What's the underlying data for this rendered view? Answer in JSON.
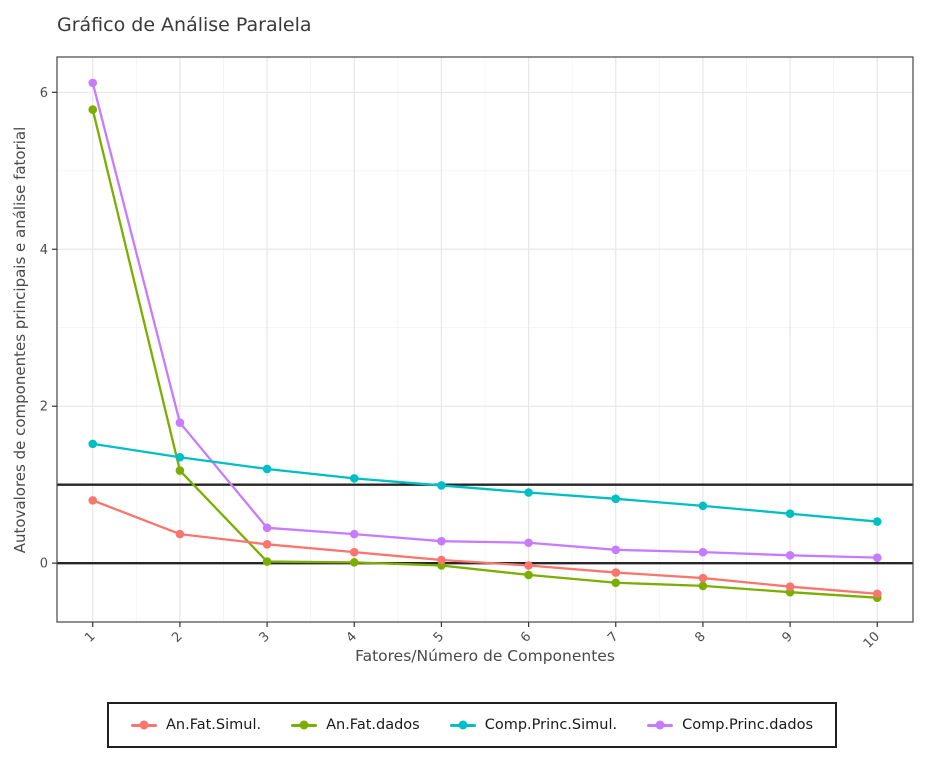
{
  "figure": {
    "title": "Gráfico de Análise Paralela"
  },
  "chart_data": {
    "type": "line",
    "title": "Gráfico de Análise Paralela",
    "xlabel": "Fatores/Número de Componentes",
    "ylabel": "Autovalores de componentes principais e análise fatorial",
    "x": [
      1,
      2,
      3,
      4,
      5,
      6,
      7,
      8,
      9,
      10
    ],
    "x_tick_labels": [
      "1",
      "2",
      "3",
      "4",
      "5",
      "6",
      "7",
      "8",
      "9",
      "10"
    ],
    "y_ticks": [
      0,
      2,
      4,
      6
    ],
    "y_minor_ticks": [
      1,
      3,
      5
    ],
    "x_minor_ticks": [
      1.5,
      2.5,
      3.5,
      4.5,
      5.5,
      6.5,
      7.5,
      8.5,
      9.5
    ],
    "xlim": [
      0.59,
      10.41
    ],
    "ylim": [
      -0.75,
      6.45
    ],
    "grid": "major+minor",
    "legend_position": "bottom",
    "reference_hlines": [
      0,
      1
    ],
    "series": [
      {
        "name": "An.Fat.Simul.",
        "color": "#F8766D",
        "values": [
          0.8,
          0.37,
          0.24,
          0.14,
          0.04,
          -0.03,
          -0.12,
          -0.19,
          -0.3,
          -0.39
        ]
      },
      {
        "name": "An.Fat.dados",
        "color": "#7CAE00",
        "values": [
          5.78,
          1.18,
          0.02,
          0.01,
          -0.03,
          -0.15,
          -0.25,
          -0.29,
          -0.37,
          -0.44
        ]
      },
      {
        "name": "Comp.Princ.Simul.",
        "color": "#00BFC4",
        "values": [
          1.52,
          1.35,
          1.2,
          1.08,
          0.99,
          0.9,
          0.82,
          0.73,
          0.63,
          0.53
        ]
      },
      {
        "name": "Comp.Princ.dados",
        "color": "#C77CFF",
        "values": [
          6.12,
          1.79,
          0.45,
          0.37,
          0.28,
          0.26,
          0.17,
          0.14,
          0.1,
          0.07
        ]
      }
    ],
    "style_colors": {
      "reference_line": "#262626",
      "panel_border": "#454545",
      "grid_major": "#e7e7e7",
      "grid_minor": "#f3f3f3",
      "tick_mark": "#333333",
      "tick_label": "#4d4d4d"
    }
  }
}
